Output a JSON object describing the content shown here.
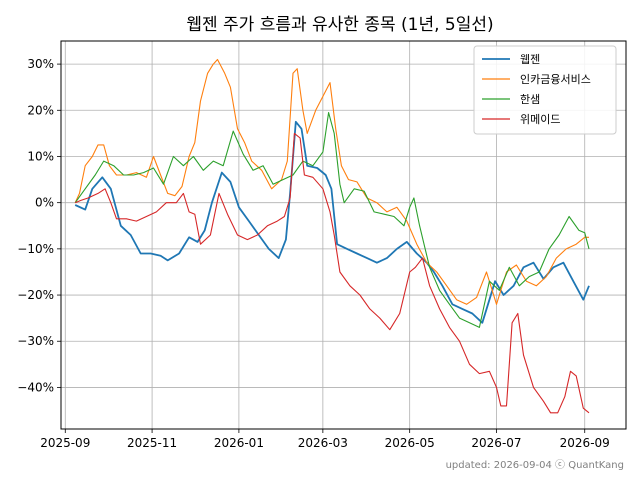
{
  "chart_data": {
    "type": "line",
    "title": "웹젠 주가 흐름과 유사한 종목 (1년, 5일선)",
    "footer": "updated: 2026-09-04 ⓒ QuantKang",
    "xlabel": "",
    "ylabel": "",
    "x_ticks": [
      "2025-09",
      "2025-11",
      "2026-01",
      "2026-03",
      "2026-05",
      "2026-07",
      "2026-09"
    ],
    "y_ticks": [
      30,
      20,
      10,
      0,
      -10,
      -20,
      -30,
      -40
    ],
    "y_tick_labels": [
      "30%",
      "20%",
      "10%",
      "0%",
      "−10%",
      "−20%",
      "−30%",
      "−40%"
    ],
    "xlim": [
      "2025-08-29",
      "2026-09-30"
    ],
    "ylim": [
      -49,
      35
    ],
    "grid": true,
    "legend_position": "top-right",
    "series": [
      {
        "name": "웹젠",
        "color": "#1f77b4",
        "points": [
          [
            "2025-09-08",
            -0.5
          ],
          [
            "2025-09-15",
            -1.5
          ],
          [
            "2025-09-20",
            3
          ],
          [
            "2025-09-27",
            5.5
          ],
          [
            "2025-10-03",
            3
          ],
          [
            "2025-10-10",
            -5
          ],
          [
            "2025-10-17",
            -7
          ],
          [
            "2025-10-24",
            -11
          ],
          [
            "2025-10-31",
            -11
          ],
          [
            "2025-11-07",
            -11.5
          ],
          [
            "2025-11-12",
            -12.5
          ],
          [
            "2025-11-20",
            -11
          ],
          [
            "2025-11-27",
            -7.5
          ],
          [
            "2025-12-03",
            -8.5
          ],
          [
            "2025-12-08",
            -6
          ],
          [
            "2025-12-13",
            0
          ],
          [
            "2025-12-20",
            6.5
          ],
          [
            "2025-12-26",
            4.5
          ],
          [
            "2026-01-01",
            -1
          ],
          [
            "2026-01-08",
            -4
          ],
          [
            "2026-01-15",
            -7
          ],
          [
            "2026-01-22",
            -10
          ],
          [
            "2026-01-29",
            -12
          ],
          [
            "2026-02-03",
            -8
          ],
          [
            "2026-02-06",
            2
          ],
          [
            "2026-02-10",
            17.5
          ],
          [
            "2026-02-14",
            16
          ],
          [
            "2026-02-18",
            8
          ],
          [
            "2026-02-25",
            7.5
          ],
          [
            "2026-03-03",
            6
          ],
          [
            "2026-03-07",
            3
          ],
          [
            "2026-03-11",
            -9
          ],
          [
            "2026-03-18",
            -10
          ],
          [
            "2026-03-25",
            -11
          ],
          [
            "2026-04-01",
            -12
          ],
          [
            "2026-04-08",
            -13
          ],
          [
            "2026-04-15",
            -12
          ],
          [
            "2026-04-22",
            -10
          ],
          [
            "2026-04-29",
            -8.5
          ],
          [
            "2026-05-06",
            -11
          ],
          [
            "2026-05-13",
            -13
          ],
          [
            "2026-05-18",
            -15
          ],
          [
            "2026-05-24",
            -18
          ],
          [
            "2026-05-31",
            -22
          ],
          [
            "2026-06-07",
            -23
          ],
          [
            "2026-06-14",
            -24
          ],
          [
            "2026-06-21",
            -26
          ],
          [
            "2026-06-25",
            -22
          ],
          [
            "2026-06-30",
            -17
          ],
          [
            "2026-07-06",
            -20
          ],
          [
            "2026-07-13",
            -18
          ],
          [
            "2026-07-20",
            -14
          ],
          [
            "2026-07-27",
            -13
          ],
          [
            "2026-08-03",
            -16.5
          ],
          [
            "2026-08-10",
            -14
          ],
          [
            "2026-08-17",
            -13
          ],
          [
            "2026-08-24",
            -17
          ],
          [
            "2026-08-31",
            -21
          ],
          [
            "2026-09-04",
            -18
          ]
        ]
      },
      {
        "name": "인카금융서비스",
        "color": "#ff7f0e",
        "points": [
          [
            "2025-09-08",
            0
          ],
          [
            "2025-09-11",
            2
          ],
          [
            "2025-09-15",
            8
          ],
          [
            "2025-09-20",
            10
          ],
          [
            "2025-09-24",
            12.5
          ],
          [
            "2025-09-28",
            12.5
          ],
          [
            "2025-10-02",
            8
          ],
          [
            "2025-10-07",
            6
          ],
          [
            "2025-10-14",
            6
          ],
          [
            "2025-10-21",
            6.5
          ],
          [
            "2025-10-28",
            5.5
          ],
          [
            "2025-11-02",
            10
          ],
          [
            "2025-11-07",
            6
          ],
          [
            "2025-11-12",
            2
          ],
          [
            "2025-11-17",
            1.5
          ],
          [
            "2025-11-22",
            3.5
          ],
          [
            "2025-11-27",
            10
          ],
          [
            "2025-12-01",
            13
          ],
          [
            "2025-12-05",
            22
          ],
          [
            "2025-12-10",
            28
          ],
          [
            "2025-12-14",
            30
          ],
          [
            "2025-12-17",
            31
          ],
          [
            "2025-12-22",
            28
          ],
          [
            "2025-12-26",
            25
          ],
          [
            "2025-12-31",
            16
          ],
          [
            "2026-01-05",
            13
          ],
          [
            "2026-01-10",
            9
          ],
          [
            "2026-01-17",
            7
          ],
          [
            "2026-01-24",
            3
          ],
          [
            "2026-01-31",
            5
          ],
          [
            "2026-02-04",
            9
          ],
          [
            "2026-02-08",
            28
          ],
          [
            "2026-02-11",
            29
          ],
          [
            "2026-02-15",
            20
          ],
          [
            "2026-02-18",
            15
          ],
          [
            "2026-02-24",
            20
          ],
          [
            "2026-03-01",
            23
          ],
          [
            "2026-03-06",
            26
          ],
          [
            "2026-03-10",
            16
          ],
          [
            "2026-03-14",
            8
          ],
          [
            "2026-03-19",
            5
          ],
          [
            "2026-03-25",
            4.5
          ],
          [
            "2026-04-01",
            1
          ],
          [
            "2026-04-08",
            0
          ],
          [
            "2026-04-15",
            -2
          ],
          [
            "2026-04-22",
            -1
          ],
          [
            "2026-04-29",
            -4
          ],
          [
            "2026-05-06",
            -9
          ],
          [
            "2026-05-13",
            -13
          ],
          [
            "2026-05-20",
            -15
          ],
          [
            "2026-05-27",
            -18
          ],
          [
            "2026-06-03",
            -21
          ],
          [
            "2026-06-10",
            -22
          ],
          [
            "2026-06-17",
            -20.5
          ],
          [
            "2026-06-24",
            -15
          ],
          [
            "2026-07-01",
            -22
          ],
          [
            "2026-07-08",
            -15
          ],
          [
            "2026-07-15",
            -13.5
          ],
          [
            "2026-07-22",
            -17
          ],
          [
            "2026-07-29",
            -18
          ],
          [
            "2026-08-05",
            -16
          ],
          [
            "2026-08-12",
            -12
          ],
          [
            "2026-08-19",
            -10
          ],
          [
            "2026-08-26",
            -9
          ],
          [
            "2026-09-01",
            -7.5
          ],
          [
            "2026-09-04",
            -7.5
          ]
        ]
      },
      {
        "name": "한샘",
        "color": "#2ca02c",
        "points": [
          [
            "2025-09-08",
            0
          ],
          [
            "2025-09-15",
            3
          ],
          [
            "2025-09-22",
            6
          ],
          [
            "2025-09-28",
            9
          ],
          [
            "2025-10-05",
            8
          ],
          [
            "2025-10-12",
            6
          ],
          [
            "2025-10-19",
            6
          ],
          [
            "2025-10-26",
            6.5
          ],
          [
            "2025-11-02",
            7.5
          ],
          [
            "2025-11-09",
            4
          ],
          [
            "2025-11-16",
            10
          ],
          [
            "2025-11-23",
            8
          ],
          [
            "2025-11-30",
            10
          ],
          [
            "2025-12-07",
            7
          ],
          [
            "2025-12-14",
            9
          ],
          [
            "2025-12-21",
            8
          ],
          [
            "2025-12-28",
            15.5
          ],
          [
            "2026-01-04",
            10.5
          ],
          [
            "2026-01-11",
            7
          ],
          [
            "2026-01-18",
            8
          ],
          [
            "2026-01-25",
            4
          ],
          [
            "2026-02-01",
            5
          ],
          [
            "2026-02-08",
            6
          ],
          [
            "2026-02-15",
            9
          ],
          [
            "2026-02-22",
            8
          ],
          [
            "2026-03-01",
            11
          ],
          [
            "2026-03-05",
            19.5
          ],
          [
            "2026-03-09",
            15
          ],
          [
            "2026-03-13",
            4
          ],
          [
            "2026-03-16",
            0
          ],
          [
            "2026-03-23",
            3
          ],
          [
            "2026-03-30",
            2.5
          ],
          [
            "2026-04-06",
            -2
          ],
          [
            "2026-04-13",
            -2.5
          ],
          [
            "2026-04-20",
            -3
          ],
          [
            "2026-04-27",
            -5
          ],
          [
            "2026-05-01",
            -1
          ],
          [
            "2026-05-04",
            1
          ],
          [
            "2026-05-08",
            -5
          ],
          [
            "2026-05-15",
            -14
          ],
          [
            "2026-05-22",
            -19
          ],
          [
            "2026-05-29",
            -22
          ],
          [
            "2026-06-05",
            -25
          ],
          [
            "2026-06-12",
            -26
          ],
          [
            "2026-06-19",
            -27
          ],
          [
            "2026-06-26",
            -17
          ],
          [
            "2026-07-03",
            -19
          ],
          [
            "2026-07-10",
            -14
          ],
          [
            "2026-07-17",
            -18
          ],
          [
            "2026-07-24",
            -16
          ],
          [
            "2026-07-31",
            -15
          ],
          [
            "2026-08-07",
            -10
          ],
          [
            "2026-08-14",
            -7
          ],
          [
            "2026-08-21",
            -3
          ],
          [
            "2026-08-28",
            -6
          ],
          [
            "2026-09-01",
            -6.5
          ],
          [
            "2026-09-04",
            -10
          ]
        ]
      },
      {
        "name": "위메이드",
        "color": "#d62728",
        "points": [
          [
            "2025-09-08",
            0
          ],
          [
            "2025-09-12",
            0.5
          ],
          [
            "2025-09-17",
            1
          ],
          [
            "2025-09-24",
            2
          ],
          [
            "2025-09-29",
            3
          ],
          [
            "2025-10-03",
            0
          ],
          [
            "2025-10-07",
            -3.5
          ],
          [
            "2025-10-14",
            -3.5
          ],
          [
            "2025-10-21",
            -4
          ],
          [
            "2025-10-28",
            -3
          ],
          [
            "2025-11-04",
            -2
          ],
          [
            "2025-11-11",
            0
          ],
          [
            "2025-11-18",
            0
          ],
          [
            "2025-11-23",
            2
          ],
          [
            "2025-11-27",
            -2
          ],
          [
            "2025-12-01",
            -2.5
          ],
          [
            "2025-12-05",
            -9
          ],
          [
            "2025-12-12",
            -7
          ],
          [
            "2025-12-18",
            2
          ],
          [
            "2025-12-24",
            -2.5
          ],
          [
            "2025-12-31",
            -7
          ],
          [
            "2026-01-07",
            -8
          ],
          [
            "2026-01-14",
            -7
          ],
          [
            "2026-01-21",
            -5
          ],
          [
            "2026-01-28",
            -4
          ],
          [
            "2026-02-02",
            -3
          ],
          [
            "2026-02-06",
            1
          ],
          [
            "2026-02-09",
            15
          ],
          [
            "2026-02-13",
            14
          ],
          [
            "2026-02-16",
            6
          ],
          [
            "2026-02-22",
            5.5
          ],
          [
            "2026-03-01",
            3
          ],
          [
            "2026-03-06",
            -2
          ],
          [
            "2026-03-09",
            -7
          ],
          [
            "2026-03-13",
            -15
          ],
          [
            "2026-03-20",
            -18
          ],
          [
            "2026-03-27",
            -20
          ],
          [
            "2026-04-03",
            -23
          ],
          [
            "2026-04-10",
            -25
          ],
          [
            "2026-04-17",
            -27.5
          ],
          [
            "2026-04-24",
            -24
          ],
          [
            "2026-05-01",
            -15
          ],
          [
            "2026-05-05",
            -14
          ],
          [
            "2026-05-10",
            -12
          ],
          [
            "2026-05-15",
            -18
          ],
          [
            "2026-05-22",
            -23
          ],
          [
            "2026-05-29",
            -27
          ],
          [
            "2026-06-05",
            -30
          ],
          [
            "2026-06-12",
            -35
          ],
          [
            "2026-06-19",
            -37
          ],
          [
            "2026-06-26",
            -36.5
          ],
          [
            "2026-07-01",
            -40
          ],
          [
            "2026-07-04",
            -44
          ],
          [
            "2026-07-08",
            -44
          ],
          [
            "2026-07-12",
            -26
          ],
          [
            "2026-07-16",
            -24
          ],
          [
            "2026-07-20",
            -33
          ],
          [
            "2026-07-27",
            -40
          ],
          [
            "2026-08-03",
            -43
          ],
          [
            "2026-08-08",
            -45.5
          ],
          [
            "2026-08-13",
            -45.5
          ],
          [
            "2026-08-18",
            -42
          ],
          [
            "2026-08-22",
            -36.5
          ],
          [
            "2026-08-26",
            -37.5
          ],
          [
            "2026-08-31",
            -44.5
          ],
          [
            "2026-09-04",
            -45.5
          ]
        ]
      }
    ]
  }
}
